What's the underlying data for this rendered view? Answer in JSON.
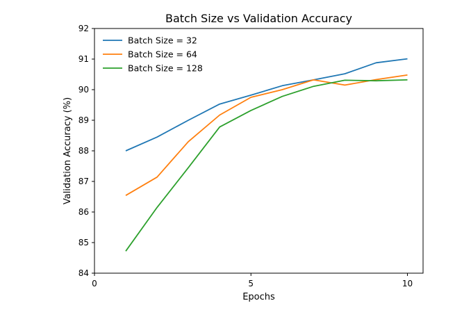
{
  "chart_data": {
    "type": "line",
    "title": "Batch Size vs Validation Accuracy",
    "xlabel": "Epochs",
    "ylabel": "Validation Accuracy (%)",
    "xlim": [
      0,
      10.5
    ],
    "ylim": [
      84,
      92
    ],
    "xticks": [
      0,
      5,
      10
    ],
    "yticks": [
      84,
      85,
      86,
      87,
      88,
      89,
      90,
      91,
      92
    ],
    "grid": false,
    "legend_position": "top-left",
    "x": [
      1,
      2,
      3,
      4,
      5,
      6,
      7,
      8,
      9,
      10
    ],
    "series": [
      {
        "name": "Batch Size = 32",
        "color": "#1f77b4",
        "values": [
          88.0,
          88.45,
          89.0,
          89.53,
          89.82,
          90.13,
          90.32,
          90.52,
          90.88,
          91.01
        ]
      },
      {
        "name": "Batch Size = 64",
        "color": "#ff7f0e",
        "values": [
          86.54,
          87.14,
          88.3,
          89.17,
          89.75,
          90.0,
          90.32,
          90.15,
          90.33,
          90.48
        ]
      },
      {
        "name": "Batch Size = 128",
        "color": "#2ca02c",
        "values": [
          84.72,
          86.15,
          87.45,
          88.78,
          89.32,
          89.78,
          90.11,
          90.31,
          90.29,
          90.32
        ]
      }
    ]
  }
}
